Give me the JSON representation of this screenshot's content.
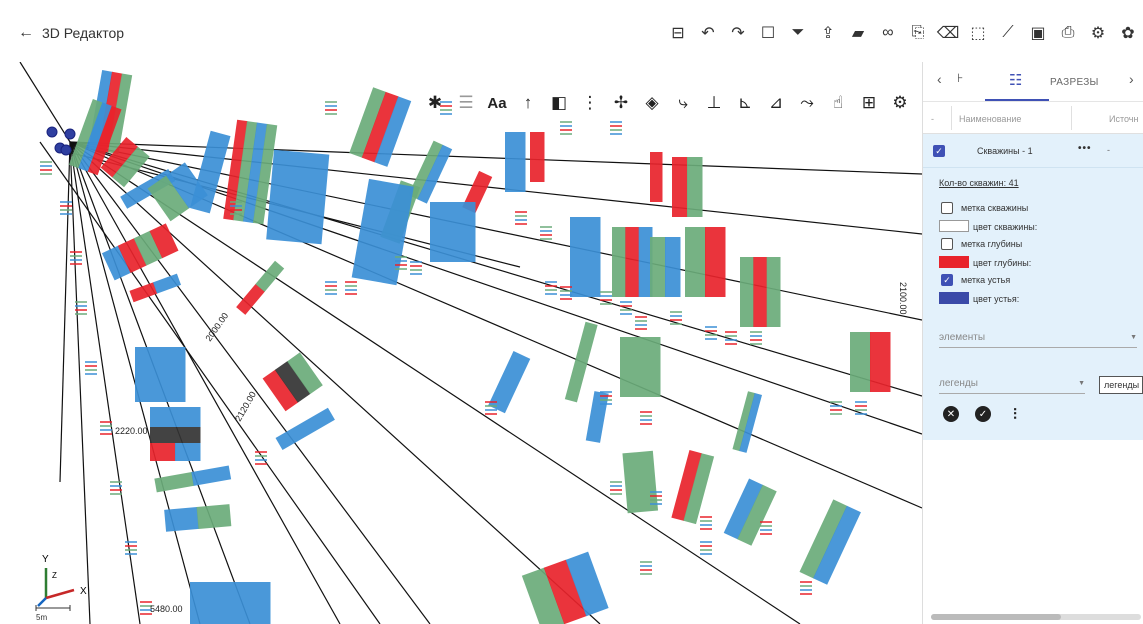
{
  "header": {
    "back_label": "3D Редактор",
    "back_icon": "arrow-left-icon"
  },
  "top_toolbar": [
    {
      "icon": "table-icon",
      "glyph": "⊟"
    },
    {
      "icon": "undo-icon",
      "glyph": "↶"
    },
    {
      "icon": "redo-icon",
      "glyph": "↷"
    },
    {
      "icon": "square-icon",
      "glyph": "☐"
    },
    {
      "icon": "filter-icon",
      "glyph": "⏷"
    },
    {
      "icon": "upload-icon",
      "glyph": "⇪"
    },
    {
      "icon": "folder-icon",
      "glyph": "▰"
    },
    {
      "icon": "link-icon",
      "glyph": "∞"
    },
    {
      "icon": "file-add-icon",
      "glyph": "⎘"
    },
    {
      "icon": "eraser-icon",
      "glyph": "⌫"
    },
    {
      "icon": "select-icon",
      "glyph": "⬚"
    },
    {
      "icon": "ruler-icon",
      "glyph": "⟋"
    },
    {
      "icon": "image-icon",
      "glyph": "▣"
    },
    {
      "icon": "document-search-icon",
      "glyph": "⎙"
    },
    {
      "icon": "settings-outline-icon",
      "glyph": "⚙"
    },
    {
      "icon": "settings-icon",
      "glyph": "✿"
    }
  ],
  "viewport_toolbar": [
    {
      "icon": "asterisk-icon",
      "glyph": "✱",
      "style": ""
    },
    {
      "icon": "grid-lines-icon",
      "glyph": "☰",
      "style": "light"
    },
    {
      "icon": "text-size-icon",
      "glyph": "Aa",
      "style": "text"
    },
    {
      "icon": "arrow-up-icon",
      "glyph": "↑",
      "style": ""
    },
    {
      "icon": "layers-icon",
      "glyph": "◧",
      "style": ""
    },
    {
      "icon": "more-vertical-icon",
      "glyph": "⋮",
      "style": ""
    },
    {
      "icon": "axis-icon",
      "glyph": "✢",
      "style": ""
    },
    {
      "icon": "diamond-icon",
      "glyph": "◈",
      "style": ""
    },
    {
      "icon": "curve-icon",
      "glyph": "⤷",
      "style": ""
    },
    {
      "icon": "well-tool-1-icon",
      "glyph": "⊥",
      "style": ""
    },
    {
      "icon": "well-tool-2-icon",
      "glyph": "⊾",
      "style": ""
    },
    {
      "icon": "well-tool-3-icon",
      "glyph": "⊿",
      "style": ""
    },
    {
      "icon": "path-icon",
      "glyph": "⤳",
      "style": ""
    },
    {
      "icon": "hand-pointer-icon",
      "glyph": "☝",
      "style": ""
    },
    {
      "icon": "layout-icon",
      "glyph": "⊞",
      "style": ""
    },
    {
      "icon": "settings-gears-icon",
      "glyph": "⚙",
      "style": ""
    }
  ],
  "axes": {
    "y": "Y",
    "z": "Z",
    "x": "X"
  },
  "scale": "5m",
  "depth_labels": [
    "2000.00",
    "2120.00",
    "2220.00",
    "5480.00",
    "2100.00"
  ],
  "panel": {
    "tab_label": "РАЗРЕЗЫ",
    "columns": [
      "-",
      "Наименование",
      "Источн"
    ],
    "layer": {
      "name": "Скважины - 1",
      "dots": "•••",
      "dash": "-",
      "checked": true
    },
    "count_label": "Кол-во скважин: 41",
    "options": [
      {
        "label": "метка скважины",
        "checked": false
      },
      {
        "label": "метка глубины",
        "checked": false
      },
      {
        "label": "метка устья",
        "checked": true
      }
    ],
    "swatches": [
      {
        "label": "цвет скважины:",
        "color": "#ffffff"
      },
      {
        "label": "цвет глубины:",
        "color": "#e8232b"
      },
      {
        "label": "цвет устья:",
        "color": "#3b4aa8"
      }
    ],
    "elements_placeholder": "элементы",
    "legends_placeholder": "легенды",
    "legend_box": "легенды"
  },
  "colors": {
    "accent": "#3f51b5",
    "panel_bg": "#e3f1fb",
    "well_blue": "#3b8fd6",
    "well_red": "#e8232b",
    "well_green": "#6aab7a"
  }
}
